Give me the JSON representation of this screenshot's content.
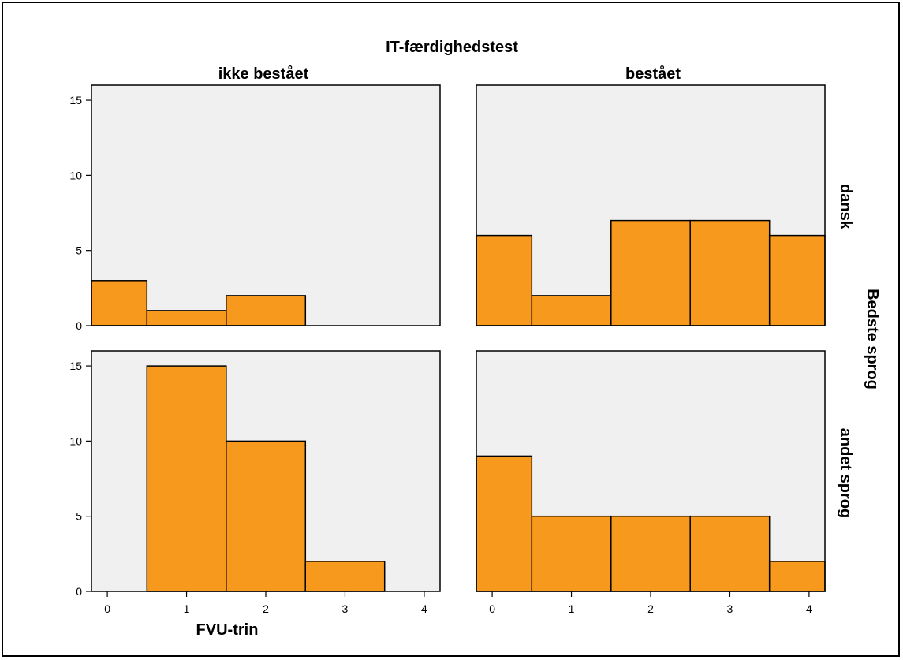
{
  "chart_data": {
    "type": "bar",
    "title": "IT-færdighedstest",
    "xlabel": "FVU-trin",
    "row_axis_label": "Bedste sprog",
    "columns": [
      "ikke bestået",
      "bestået"
    ],
    "rows": [
      "dansk",
      "andet sprog"
    ],
    "x_ticks": [
      0,
      1,
      2,
      3,
      4
    ],
    "y_ticks": [
      0,
      5,
      10,
      15
    ],
    "ylim": [
      0,
      16
    ],
    "xlim": [
      -0.2,
      4.2
    ],
    "bar_color": "#f7991c",
    "panel_bg": "#f0f0f0",
    "panels": [
      {
        "row": "dansk",
        "column": "ikke bestået",
        "x": [
          0,
          1,
          2,
          3,
          4
        ],
        "values": [
          3,
          1,
          2,
          0,
          0
        ]
      },
      {
        "row": "dansk",
        "column": "bestået",
        "x": [
          0,
          1,
          2,
          3,
          4
        ],
        "values": [
          6,
          2,
          7,
          7,
          6
        ]
      },
      {
        "row": "andet sprog",
        "column": "ikke bestået",
        "x": [
          0,
          1,
          2,
          3,
          4
        ],
        "values": [
          0,
          15,
          10,
          2,
          0
        ]
      },
      {
        "row": "andet sprog",
        "column": "bestået",
        "x": [
          0,
          1,
          2,
          3,
          4
        ],
        "values": [
          9,
          5,
          5,
          5,
          2
        ]
      }
    ]
  }
}
